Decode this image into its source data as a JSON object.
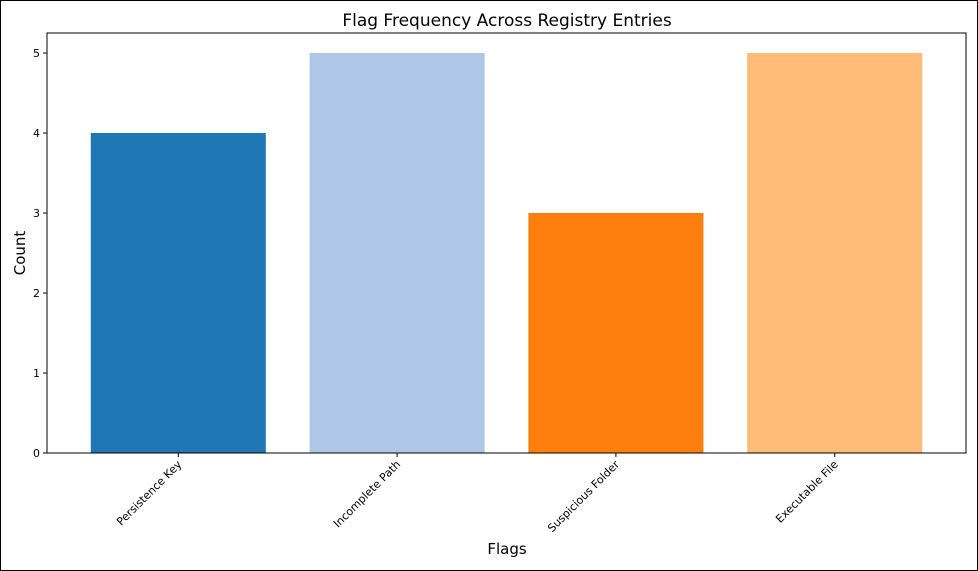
{
  "chart_data": {
    "type": "bar",
    "title": "Flag Frequency Across Registry Entries",
    "xlabel": "Flags",
    "ylabel": "Count",
    "categories": [
      "Persistence Key",
      "Incomplete Path",
      "Suspicious Folder",
      "Executable File"
    ],
    "values": [
      4,
      5,
      3,
      5
    ],
    "colors": [
      "#1f77b4",
      "#aec7e8",
      "#ff7f0e",
      "#ffbb78"
    ],
    "ylim": [
      0,
      5.25
    ],
    "yticks": [
      0,
      1,
      2,
      3,
      4,
      5
    ],
    "grid": false,
    "legend": "none"
  }
}
